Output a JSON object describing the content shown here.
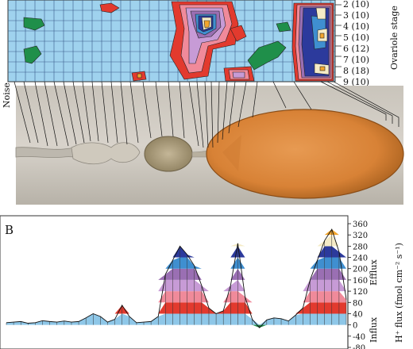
{
  "panel_b_label": "B",
  "heatmap": {
    "noise_label": "Noise",
    "stage_axis_label": "Ovariole stage",
    "stage_labels": [
      "2 (10)",
      "3 (10)",
      "4 (10)",
      "5 (10)",
      "6 (12)",
      "7 (10)",
      "8 (18)",
      "9 (10)"
    ]
  },
  "chart_data": {
    "type": "area",
    "ylabel": "H⁺ flux (fmol cm⁻² s⁻¹)",
    "ylim": [
      -80,
      360
    ],
    "yticks": [
      -80,
      -40,
      0,
      40,
      80,
      120,
      160,
      200,
      240,
      280,
      320,
      360
    ],
    "annotations": {
      "upper": "Efflux",
      "lower": "Influx"
    },
    "contour_levels": [
      0,
      40,
      80,
      120,
      160,
      200,
      240,
      280,
      320
    ],
    "colors": {
      "neg": "#1f8f4a",
      "l0": "#8ec7e8",
      "l1": "#e23a2e",
      "l2": "#f08a9a",
      "l3": "#c79bd6",
      "l4": "#9a6fb3",
      "l5": "#3f8fd0",
      "l6": "#2c3a9c",
      "l7": "#f5ebc6",
      "l8": "#f2a52d"
    },
    "x": [
      0,
      1,
      2,
      3,
      4,
      5,
      6,
      7,
      8,
      9,
      10,
      11,
      12,
      13,
      14,
      15,
      16,
      17,
      18,
      19,
      20,
      21,
      22,
      23,
      24,
      25,
      26,
      27,
      28,
      29,
      30,
      31,
      32,
      33,
      34,
      35,
      36,
      37,
      38,
      39,
      40,
      41,
      42,
      43,
      44,
      45,
      46,
      47
    ],
    "series": [
      {
        "values": [
          8,
          10,
          12,
          6,
          8,
          15,
          12,
          10,
          14,
          10,
          12,
          25,
          40,
          30,
          10,
          20,
          70,
          30,
          8,
          10,
          12,
          30,
          180,
          230,
          280,
          250,
          210,
          140,
          60,
          40,
          50,
          140,
          290,
          100,
          20,
          -10,
          18,
          25,
          22,
          14,
          35,
          60,
          160,
          230,
          300,
          340,
          260,
          90
        ]
      }
    ]
  }
}
